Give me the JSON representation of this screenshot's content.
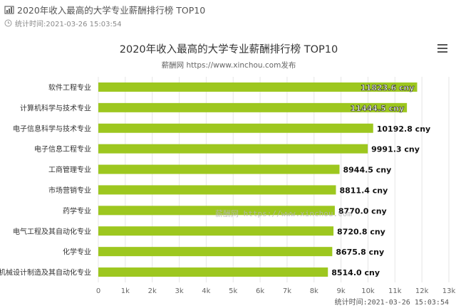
{
  "header": {
    "title": "2020年收入最高的大学专业薪酬排行榜 TOP10",
    "timestamp": "统计时间:2021-03-26 15:03:54"
  },
  "icons": {
    "title_icon": "bar-chart-icon",
    "time_icon": "clock-icon",
    "menu_icon": "menu-icon"
  },
  "colors": {
    "bar": "#9dc71f",
    "grid": "#e6e6e6",
    "text": "#333333"
  },
  "chart_data": {
    "type": "bar",
    "orientation": "horizontal",
    "title": "2020年收入最高的大学专业薪酬排行榜 TOP10",
    "subtitle": "薪酬网 https://www.xinchou.com发布",
    "categories": [
      "软件工程专业",
      "计算机科学与技术专业",
      "电子信息科学与技术专业",
      "电子信息工程专业",
      "工商管理专业",
      "市场营销专业",
      "药学专业",
      "电气工程及其自动化专业",
      "化学专业",
      "机械设计制造及其自动化专业"
    ],
    "values": [
      11823.6,
      11444.5,
      10192.8,
      9991.3,
      8944.5,
      8811.4,
      8770.0,
      8720.8,
      8675.8,
      8514.0
    ],
    "data_labels": [
      "11823.6 cny",
      "11444.5 cny",
      "10192.8 cny",
      "9991.3 cny",
      "8944.5 cny",
      "8811.4 cny",
      "8770.0 cny",
      "8720.8 cny",
      "8675.8 cny",
      "8514.0 cny"
    ],
    "x_ticks": [
      "0",
      "1k",
      "2k",
      "3k",
      "4k",
      "5k",
      "6k",
      "7k",
      "8k",
      "9k",
      "10k",
      "11k",
      "12k",
      "13k"
    ],
    "xlim": [
      0,
      13000
    ],
    "grid": true,
    "watermark": "薪酬网 https://www.xinchou.com",
    "footer": "统计时间:2021-03-26 15:03:54"
  }
}
